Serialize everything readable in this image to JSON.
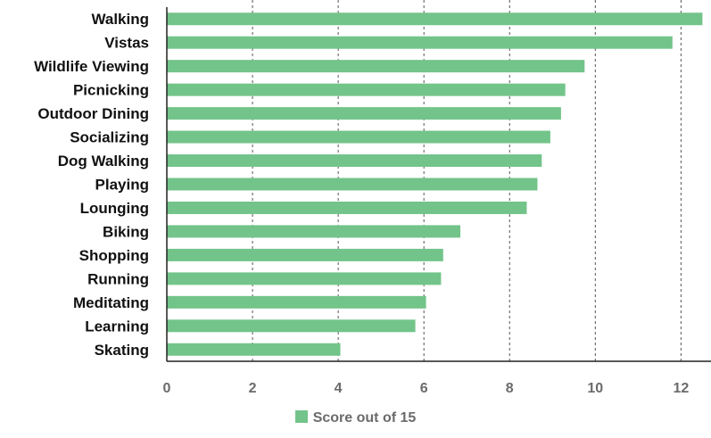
{
  "chart_data": {
    "type": "bar",
    "orientation": "horizontal",
    "categories": [
      "Walking",
      "Vistas",
      "Wildlife Viewing",
      "Picnicking",
      "Outdoor Dining",
      "Socializing",
      "Dog Walking",
      "Playing",
      "Lounging",
      "Biking",
      "Shopping",
      "Running",
      "Meditating",
      "Learning",
      "Skating"
    ],
    "series": [
      {
        "name": "Score out of 15",
        "values": [
          12.5,
          11.8,
          9.75,
          9.3,
          9.2,
          8.95,
          8.75,
          8.65,
          8.4,
          6.85,
          6.45,
          6.4,
          6.05,
          5.8,
          4.05
        ],
        "color": "#73c48a"
      }
    ],
    "xlim": [
      0,
      12.7
    ],
    "xticks": [
      0,
      2,
      4,
      6,
      8,
      10,
      12
    ],
    "grid": "vertical-dashed",
    "legend_position": "bottom-center"
  }
}
